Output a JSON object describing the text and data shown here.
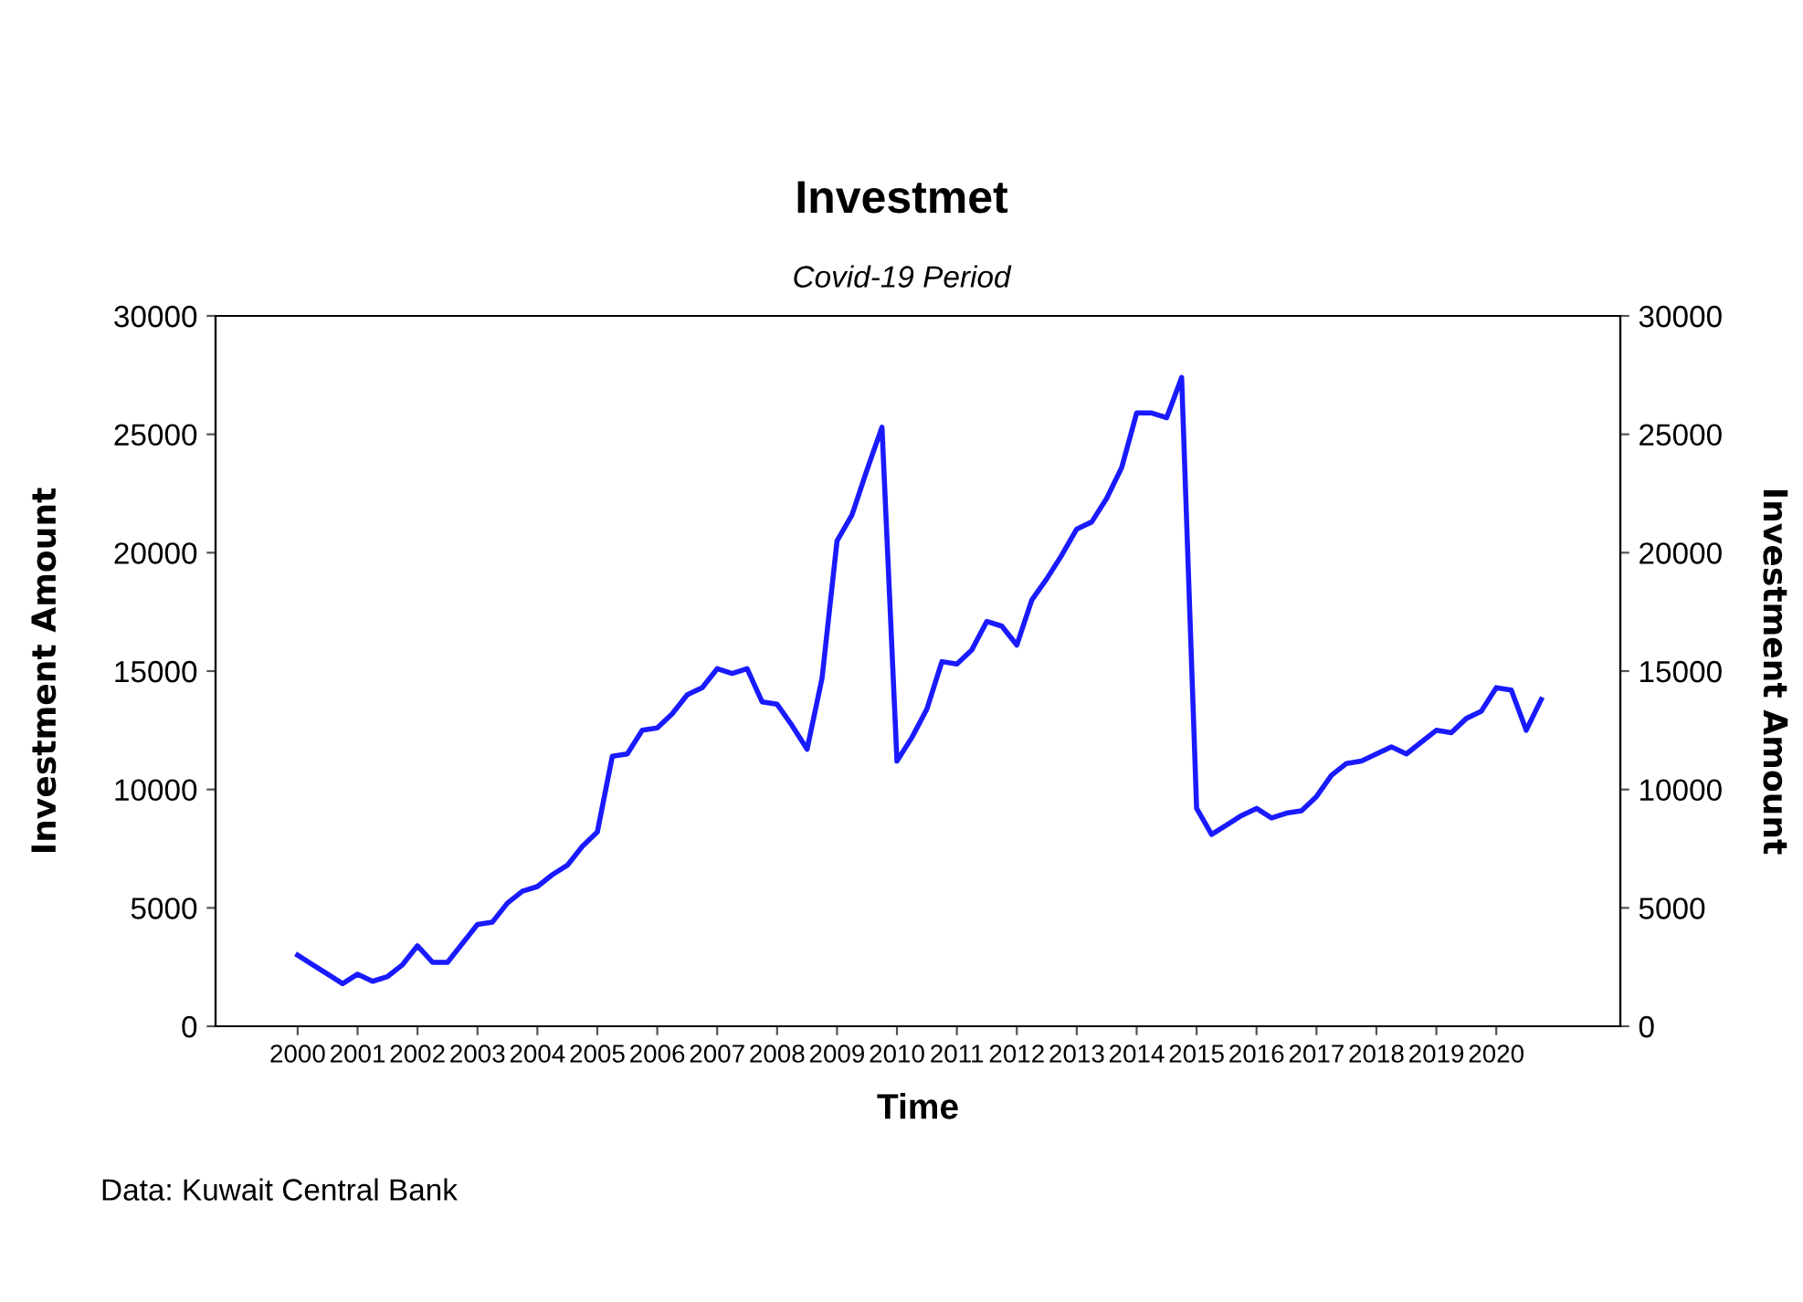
{
  "chart_data": {
    "type": "line",
    "title": "Investmet",
    "subtitle": "Covid-19 Period",
    "xlabel": "Time",
    "ylabel": "Investment Amount",
    "y2label": "Investment Amount",
    "annotations": [
      "Data: Kuwait Central Bank"
    ],
    "x": [
      2000.0,
      2000.25,
      2000.5,
      2000.75,
      2001.0,
      2001.25,
      2001.5,
      2001.75,
      2002.0,
      2002.25,
      2002.5,
      2002.75,
      2003.0,
      2003.25,
      2003.5,
      2003.75,
      2004.0,
      2004.25,
      2004.5,
      2004.75,
      2005.0,
      2005.25,
      2005.5,
      2005.75,
      2006.0,
      2006.25,
      2006.5,
      2006.75,
      2007.0,
      2007.25,
      2007.5,
      2007.75,
      2008.0,
      2008.25,
      2008.5,
      2008.75,
      2009.0,
      2009.25,
      2009.5,
      2009.75,
      2010.0,
      2010.25,
      2010.5,
      2010.75,
      2011.0,
      2011.25,
      2011.5,
      2011.75,
      2012.0,
      2012.25,
      2012.5,
      2012.75,
      2013.0,
      2013.25,
      2013.5,
      2013.75,
      2014.0,
      2014.25,
      2014.5,
      2014.75,
      2015.0,
      2015.25,
      2015.5,
      2015.75,
      2016.0,
      2016.25,
      2016.5,
      2016.75,
      2017.0,
      2017.25,
      2017.5,
      2017.75,
      2018.0,
      2018.25,
      2018.5,
      2018.75,
      2019.0,
      2019.25,
      2019.5,
      2019.75,
      2020.0,
      2020.25,
      2020.5,
      2020.75
    ],
    "series": [
      {
        "color": "#1a1aff",
        "values": [
          3000,
          2600,
          2200,
          1800,
          2200,
          1900,
          2100,
          2600,
          3400,
          2700,
          2700,
          3500,
          4300,
          4400,
          5200,
          5700,
          5900,
          6400,
          6800,
          7600,
          8200,
          11400,
          11500,
          12500,
          12600,
          13200,
          14000,
          14300,
          15100,
          14900,
          15100,
          13700,
          13600,
          12700,
          11700,
          14700,
          20500,
          21600,
          23500,
          25300,
          11200,
          12200,
          13400,
          15400,
          15300,
          15900,
          17100,
          16900,
          16100,
          18000,
          18900,
          19900,
          21000,
          21300,
          22300,
          23600,
          25900,
          25900,
          25700,
          27400,
          9200,
          8100,
          8500,
          8900,
          9200,
          8800,
          9000,
          9100,
          9700,
          10600,
          11100,
          11200,
          11500,
          11800,
          11500,
          12000,
          12500,
          12400,
          13000,
          13300,
          14300,
          14200,
          12500,
          13800
        ]
      }
    ],
    "xlim": [
      1998.63,
      2022.07
    ],
    "xticks": [
      2000,
      2001,
      2002,
      2003,
      2004,
      2005,
      2006,
      2007,
      2008,
      2009,
      2010,
      2011,
      2012,
      2013,
      2014,
      2015,
      2016,
      2017,
      2018,
      2019,
      2020
    ],
    "ylim": [
      0,
      30000
    ],
    "yticks": [
      0,
      5000,
      10000,
      15000,
      20000,
      25000,
      30000
    ],
    "y2lim": [
      0,
      30000
    ],
    "y2ticks": [
      0,
      5000,
      10000,
      15000,
      20000,
      25000,
      30000
    ],
    "grid": false,
    "marker": "none",
    "line_style": "solid"
  }
}
